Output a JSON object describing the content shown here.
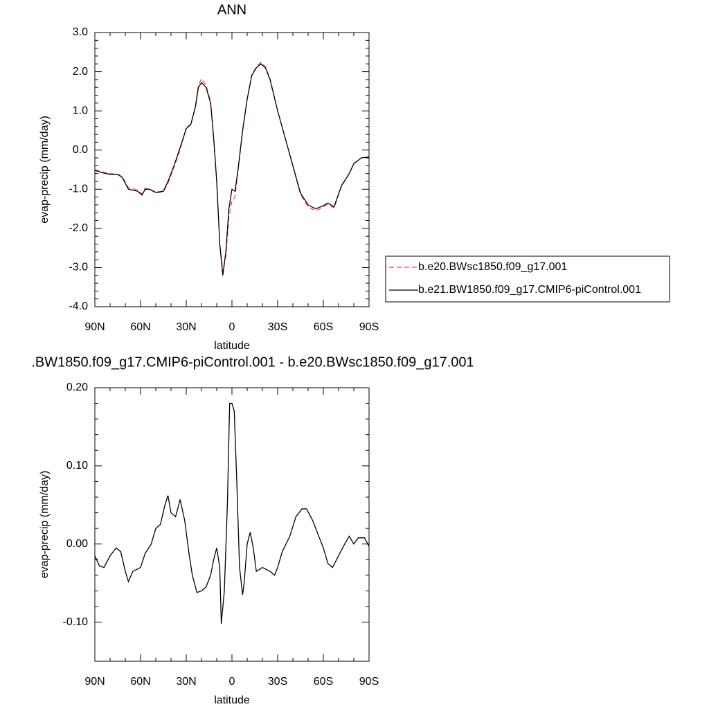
{
  "chart_data": [
    {
      "type": "line",
      "title": "ANN",
      "xlabel": "latitude",
      "ylabel": "evap-precip (mm/day)",
      "xlim": [
        90,
        -90
      ],
      "xticks": [
        {
          "value": 90,
          "label": "90N"
        },
        {
          "value": 60,
          "label": "60N"
        },
        {
          "value": 30,
          "label": "30N"
        },
        0,
        {
          "value": -30,
          "label": "30S"
        },
        {
          "value": -60,
          "label": "60S"
        },
        {
          "value": -90,
          "label": "90S"
        }
      ],
      "ylim": [
        -4,
        3
      ],
      "yticks": [
        {
          "value": 3,
          "label": "3.0"
        },
        {
          "value": 2,
          "label": "2.0"
        },
        {
          "value": 1,
          "label": "1.0"
        },
        {
          "value": 0,
          "label": "0.0"
        },
        {
          "value": -1,
          "label": "-1.0"
        },
        {
          "value": -2,
          "label": "-2.0"
        },
        {
          "value": -3,
          "label": "-3.0"
        },
        {
          "value": -4,
          "label": "-4.0"
        }
      ],
      "legend": "right",
      "x": [
        90,
        85,
        80,
        75,
        72,
        68,
        62,
        59,
        57,
        54,
        50,
        45,
        42,
        38,
        35,
        32,
        30,
        27,
        24,
        22,
        20,
        17,
        14,
        12,
        10,
        8,
        6,
        4,
        2,
        0,
        -2,
        -4,
        -7,
        -10,
        -13,
        -16,
        -19,
        -22,
        -25,
        -30,
        -35,
        -40,
        -45,
        -50,
        -55,
        -60,
        -63,
        -67,
        -72,
        -77,
        -80,
        -85,
        -90
      ],
      "series": [
        {
          "name": "b.e20.BWsc1850.f09_g17.001",
          "color": "#ff4040",
          "dash": "dashed",
          "values": [
            -0.5,
            -0.56,
            -0.6,
            -0.62,
            -0.68,
            -0.96,
            -1.02,
            -1.12,
            -0.98,
            -1.0,
            -1.1,
            -1.06,
            -0.85,
            -0.43,
            -0.1,
            0.28,
            0.58,
            0.66,
            1.12,
            1.66,
            1.82,
            1.65,
            1.24,
            0.33,
            -0.8,
            -2.36,
            -3.1,
            -2.7,
            -1.7,
            -1.3,
            -1.2,
            -0.52,
            0.48,
            1.3,
            1.92,
            2.12,
            2.24,
            2.12,
            1.82,
            1.0,
            0.3,
            -0.42,
            -1.13,
            -1.45,
            -1.55,
            -1.45,
            -1.38,
            -1.48,
            -0.92,
            -0.6,
            -0.34,
            -0.2,
            -0.17
          ]
        },
        {
          "name": "b.e21.BW1850.f09_g17.CMIP6-piControl.001",
          "color": "#000000",
          "dash": "solid",
          "values": [
            -0.52,
            -0.58,
            -0.62,
            -0.62,
            -0.7,
            -1.0,
            -1.05,
            -1.15,
            -1.0,
            -1.0,
            -1.08,
            -1.05,
            -0.8,
            -0.4,
            -0.05,
            0.3,
            0.55,
            0.65,
            1.1,
            1.6,
            1.72,
            1.6,
            1.2,
            0.3,
            -0.8,
            -2.4,
            -3.2,
            -2.6,
            -1.5,
            -1.0,
            -1.05,
            -0.5,
            0.5,
            1.3,
            1.9,
            2.1,
            2.2,
            2.1,
            1.8,
            1.0,
            0.3,
            -0.4,
            -1.1,
            -1.4,
            -1.5,
            -1.42,
            -1.35,
            -1.45,
            -0.9,
            -0.6,
            -0.35,
            -0.2,
            -0.18
          ]
        }
      ]
    },
    {
      "type": "line",
      "title": ".BW1850.f09_g17.CMIP6-piControl.001 - b.e20.BWsc1850.f09_g17.001",
      "xlabel": "latitude",
      "ylabel": "evap-precip (mm/day)",
      "xlim": [
        90,
        -90
      ],
      "xticks": [
        {
          "value": 90,
          "label": "90N"
        },
        {
          "value": 60,
          "label": "60N"
        },
        {
          "value": 30,
          "label": "30N"
        },
        0,
        {
          "value": -30,
          "label": "30S"
        },
        {
          "value": -60,
          "label": "60S"
        },
        {
          "value": -90,
          "label": "90S"
        }
      ],
      "ylim": [
        -0.15,
        0.2
      ],
      "yticks": [
        {
          "value": 0.2,
          "label": "0.20"
        },
        {
          "value": 0.1,
          "label": "0.10"
        },
        {
          "value": 0,
          "label": "0.00"
        },
        {
          "value": -0.1,
          "label": "-0.10"
        }
      ],
      "x": [
        90,
        87,
        84,
        80,
        76,
        73,
        70,
        68,
        65,
        60,
        57,
        53,
        50,
        47,
        44,
        42,
        40,
        37,
        34,
        31,
        28,
        26,
        23,
        20,
        17,
        14,
        12,
        10,
        8,
        7,
        5,
        3,
        1.5,
        0,
        -1.5,
        -3,
        -5,
        -7,
        -8,
        -10,
        -12,
        -14,
        -16,
        -20,
        -25,
        -28,
        -30,
        -33,
        -38,
        -42,
        -46,
        -49,
        -53,
        -57,
        -60,
        -63,
        -66,
        -70,
        -74,
        -77,
        -80,
        -83,
        -87,
        -90
      ],
      "series": [
        {
          "color": "#000000",
          "dash": "solid",
          "values": [
            -0.015,
            -0.028,
            -0.03,
            -0.015,
            -0.005,
            -0.01,
            -0.035,
            -0.048,
            -0.035,
            -0.03,
            -0.012,
            0.0,
            0.02,
            0.025,
            0.05,
            0.062,
            0.04,
            0.035,
            0.057,
            0.03,
            -0.015,
            -0.04,
            -0.062,
            -0.06,
            -0.055,
            -0.04,
            -0.02,
            -0.005,
            -0.03,
            -0.102,
            -0.06,
            0.05,
            0.18,
            0.18,
            0.17,
            0.09,
            -0.03,
            -0.065,
            -0.05,
            0.0,
            0.015,
            -0.005,
            -0.035,
            -0.03,
            -0.035,
            -0.04,
            -0.03,
            -0.01,
            0.01,
            0.035,
            0.045,
            0.045,
            0.03,
            0.01,
            -0.005,
            -0.025,
            -0.03,
            -0.015,
            0.0,
            0.01,
            0.0,
            0.008,
            0.008,
            -0.003
          ]
        }
      ]
    }
  ]
}
